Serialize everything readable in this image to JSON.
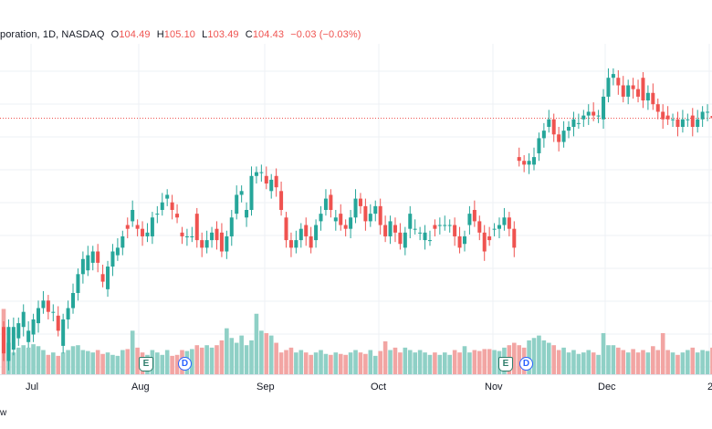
{
  "header": {
    "symbol": "poration, 1D, NASDAQ",
    "open_label": "O",
    "open": "104.49",
    "high_label": "H",
    "high": "105.10",
    "low_label": "L",
    "low": "103.49",
    "close_label": "C",
    "close": "104.43",
    "change": "−0.03 (−0.03%)"
  },
  "footer": {
    "text": "w"
  },
  "colors": {
    "up": "#26a69a",
    "down": "#ef5350",
    "vol_up": "#8fd0c6",
    "vol_down": "#f2a5a3",
    "grid": "#eef0f4",
    "earnings": "#2e7d6b",
    "dividend": "#2962ff"
  },
  "chart_data": {
    "type": "candlestick",
    "grid": true,
    "price_line_value": "104.43",
    "x_tick_labels": [
      "Jul",
      "Aug",
      "Sep",
      "Oct",
      "Nov",
      "Dec",
      "2"
    ],
    "events": [
      {
        "type": "earnings",
        "icon": "E"
      },
      {
        "type": "dividend",
        "icon": "D"
      },
      {
        "type": "earnings",
        "icon": "E"
      },
      {
        "type": "dividend",
        "icon": "D"
      }
    ],
    "candles": [
      {
        "o": 98.9,
        "c": 98.2,
        "v": 1.35
      },
      {
        "o": 98.0,
        "c": 98.9,
        "v": 0.65
      },
      {
        "o": 98.3,
        "c": 98.9,
        "v": 0.45
      },
      {
        "o": 98.6,
        "c": 99.0,
        "v": 0.55
      },
      {
        "o": 98.9,
        "c": 99.3,
        "v": 0.6
      },
      {
        "o": 98.5,
        "c": 98.8,
        "v": 0.55
      },
      {
        "o": 98.7,
        "c": 99.1,
        "v": 0.62
      },
      {
        "o": 99.0,
        "c": 99.4,
        "v": 0.58
      },
      {
        "o": 99.4,
        "c": 99.6,
        "v": 0.5
      },
      {
        "o": 99.6,
        "c": 99.3,
        "v": 0.4
      },
      {
        "o": 99.3,
        "c": 99.3,
        "v": 0.45
      },
      {
        "o": 99.2,
        "c": 98.8,
        "v": 0.38
      },
      {
        "o": 98.4,
        "c": 99.1,
        "v": 0.45
      },
      {
        "o": 99.1,
        "c": 99.4,
        "v": 0.5
      },
      {
        "o": 99.4,
        "c": 99.8,
        "v": 0.58
      },
      {
        "o": 99.8,
        "c": 100.3,
        "v": 0.6
      },
      {
        "o": 100.3,
        "c": 100.7,
        "v": 0.5
      },
      {
        "o": 100.4,
        "c": 100.8,
        "v": 0.48
      },
      {
        "o": 100.6,
        "c": 100.9,
        "v": 0.45
      },
      {
        "o": 100.9,
        "c": 100.6,
        "v": 0.5
      },
      {
        "o": 100.3,
        "c": 100.1,
        "v": 0.42
      },
      {
        "o": 99.9,
        "c": 100.5,
        "v": 0.45
      },
      {
        "o": 100.5,
        "c": 100.9,
        "v": 0.4
      },
      {
        "o": 100.8,
        "c": 101.0,
        "v": 0.38
      },
      {
        "o": 101.0,
        "c": 101.3,
        "v": 0.5
      },
      {
        "o": 101.6,
        "c": 101.5,
        "v": 0.52
      },
      {
        "o": 101.7,
        "c": 102.0,
        "v": 0.9
      },
      {
        "o": 101.6,
        "c": 101.5,
        "v": 0.55
      },
      {
        "o": 101.5,
        "c": 101.3,
        "v": 0.45
      },
      {
        "o": 101.3,
        "c": 101.4,
        "v": 0.4
      },
      {
        "o": 101.3,
        "c": 101.8,
        "v": 0.5
      },
      {
        "o": 101.9,
        "c": 101.9,
        "v": 0.45
      },
      {
        "o": 102.0,
        "c": 102.2,
        "v": 0.4
      },
      {
        "o": 102.3,
        "c": 102.4,
        "v": 0.5
      },
      {
        "o": 102.2,
        "c": 102.0,
        "v": 0.38
      },
      {
        "o": 101.9,
        "c": 101.8,
        "v": 0.4
      },
      {
        "o": 101.4,
        "c": 101.3,
        "v": 0.5
      },
      {
        "o": 101.3,
        "c": 101.3,
        "v": 0.48
      },
      {
        "o": 101.3,
        "c": 101.3,
        "v": 0.52
      },
      {
        "o": 101.9,
        "c": 101.2,
        "v": 0.6
      },
      {
        "o": 101.2,
        "c": 101.0,
        "v": 0.55
      },
      {
        "o": 101.0,
        "c": 101.2,
        "v": 0.6
      },
      {
        "o": 101.2,
        "c": 101.4,
        "v": 0.55
      },
      {
        "o": 101.5,
        "c": 101.2,
        "v": 0.6
      },
      {
        "o": 101.4,
        "c": 100.9,
        "v": 0.7
      },
      {
        "o": 100.9,
        "c": 101.3,
        "v": 0.95
      },
      {
        "o": 101.3,
        "c": 101.8,
        "v": 0.75
      },
      {
        "o": 101.9,
        "c": 102.4,
        "v": 0.65
      },
      {
        "o": 102.4,
        "c": 102.5,
        "v": 0.8
      },
      {
        "o": 101.8,
        "c": 102.0,
        "v": 0.6
      },
      {
        "o": 102.0,
        "c": 102.9,
        "v": 0.7
      },
      {
        "o": 102.9,
        "c": 103.0,
        "v": 1.25
      },
      {
        "o": 103.0,
        "c": 103.0,
        "v": 0.9
      },
      {
        "o": 102.9,
        "c": 102.7,
        "v": 0.85
      },
      {
        "o": 102.5,
        "c": 102.8,
        "v": 0.8
      },
      {
        "o": 102.9,
        "c": 102.6,
        "v": 0.65
      },
      {
        "o": 102.5,
        "c": 102.0,
        "v": 0.45
      },
      {
        "o": 101.8,
        "c": 101.2,
        "v": 0.5
      },
      {
        "o": 101.2,
        "c": 101.0,
        "v": 0.55
      },
      {
        "o": 101.0,
        "c": 101.2,
        "v": 0.45
      },
      {
        "o": 101.2,
        "c": 101.5,
        "v": 0.5
      },
      {
        "o": 101.6,
        "c": 101.3,
        "v": 0.45
      },
      {
        "o": 101.3,
        "c": 101.0,
        "v": 0.4
      },
      {
        "o": 101.2,
        "c": 101.6,
        "v": 0.45
      },
      {
        "o": 101.7,
        "c": 101.9,
        "v": 0.5
      },
      {
        "o": 102.0,
        "c": 102.3,
        "v": 0.42
      },
      {
        "o": 102.4,
        "c": 102.0,
        "v": 0.4
      },
      {
        "o": 101.7,
        "c": 101.8,
        "v": 0.45
      },
      {
        "o": 101.9,
        "c": 101.6,
        "v": 0.42
      },
      {
        "o": 101.6,
        "c": 101.5,
        "v": 0.4
      },
      {
        "o": 101.5,
        "c": 101.8,
        "v": 0.45
      },
      {
        "o": 101.8,
        "c": 102.3,
        "v": 0.5
      },
      {
        "o": 102.3,
        "c": 102.1,
        "v": 0.45
      },
      {
        "o": 102.1,
        "c": 101.7,
        "v": 0.42
      },
      {
        "o": 101.7,
        "c": 101.9,
        "v": 0.5
      },
      {
        "o": 101.9,
        "c": 102.1,
        "v": 0.38
      },
      {
        "o": 102.1,
        "c": 101.6,
        "v": 0.48
      },
      {
        "o": 101.6,
        "c": 101.3,
        "v": 0.68
      },
      {
        "o": 101.3,
        "c": 101.7,
        "v": 0.5
      },
      {
        "o": 101.6,
        "c": 101.4,
        "v": 0.55
      },
      {
        "o": 101.4,
        "c": 101.1,
        "v": 0.45
      },
      {
        "o": 101.0,
        "c": 101.4,
        "v": 0.55
      },
      {
        "o": 101.5,
        "c": 101.9,
        "v": 0.5
      },
      {
        "o": 101.5,
        "c": 101.5,
        "v": 0.45
      },
      {
        "o": 101.4,
        "c": 101.4,
        "v": 0.5
      },
      {
        "o": 101.2,
        "c": 101.4,
        "v": 0.45
      },
      {
        "o": 101.2,
        "c": 101.2,
        "v": 0.4
      },
      {
        "o": 101.6,
        "c": 101.5,
        "v": 0.45
      },
      {
        "o": 101.6,
        "c": 101.6,
        "v": 0.4
      },
      {
        "o": 101.6,
        "c": 101.6,
        "v": 0.45
      },
      {
        "o": 101.6,
        "c": 101.6,
        "v": 0.4
      },
      {
        "o": 101.6,
        "c": 101.3,
        "v": 0.5
      },
      {
        "o": 101.3,
        "c": 101.0,
        "v": 0.45
      },
      {
        "o": 101.1,
        "c": 101.3,
        "v": 0.58
      },
      {
        "o": 101.6,
        "c": 101.9,
        "v": 0.45
      },
      {
        "o": 102.0,
        "c": 101.7,
        "v": 0.5
      },
      {
        "o": 101.7,
        "c": 101.4,
        "v": 0.48
      },
      {
        "o": 101.4,
        "c": 100.9,
        "v": 0.52
      },
      {
        "o": 101.3,
        "c": 101.2,
        "v": 0.52
      },
      {
        "o": 101.5,
        "c": 101.5,
        "v": 0.5
      },
      {
        "o": 101.5,
        "c": 101.6,
        "v": 0.48
      },
      {
        "o": 101.6,
        "c": 101.8,
        "v": 0.55
      },
      {
        "o": 101.8,
        "c": 101.5,
        "v": 0.6
      },
      {
        "o": 101.5,
        "c": 101.0,
        "v": 0.65
      },
      {
        "o": 103.4,
        "c": 103.3,
        "v": 0.6
      },
      {
        "o": 103.3,
        "c": 103.2,
        "v": 0.55
      },
      {
        "o": 103.2,
        "c": 103.3,
        "v": 0.7
      },
      {
        "o": 103.2,
        "c": 103.4,
        "v": 0.75
      },
      {
        "o": 103.5,
        "c": 103.9,
        "v": 0.8
      },
      {
        "o": 103.9,
        "c": 104.1,
        "v": 0.7
      },
      {
        "o": 104.2,
        "c": 104.4,
        "v": 0.65
      },
      {
        "o": 104.4,
        "c": 104.0,
        "v": 0.6
      },
      {
        "o": 104.0,
        "c": 103.8,
        "v": 0.5
      },
      {
        "o": 103.8,
        "c": 104.1,
        "v": 0.55
      },
      {
        "o": 104.1,
        "c": 104.2,
        "v": 0.45
      },
      {
        "o": 104.2,
        "c": 104.4,
        "v": 0.5
      },
      {
        "o": 104.3,
        "c": 104.3,
        "v": 0.42
      },
      {
        "o": 104.4,
        "c": 104.5,
        "v": 0.45
      },
      {
        "o": 104.5,
        "c": 104.6,
        "v": 0.5
      },
      {
        "o": 104.6,
        "c": 104.5,
        "v": 0.45
      },
      {
        "o": 104.5,
        "c": 104.5,
        "v": 0.4
      },
      {
        "o": 104.4,
        "c": 105.0,
        "v": 0.85
      },
      {
        "o": 105.0,
        "c": 105.5,
        "v": 0.6
      },
      {
        "o": 105.5,
        "c": 105.6,
        "v": 0.6
      },
      {
        "o": 105.5,
        "c": 105.3,
        "v": 0.55
      },
      {
        "o": 105.3,
        "c": 105.0,
        "v": 0.5
      },
      {
        "o": 105.0,
        "c": 105.3,
        "v": 0.45
      },
      {
        "o": 105.3,
        "c": 105.2,
        "v": 0.52
      },
      {
        "o": 105.2,
        "c": 105.0,
        "v": 0.45
      },
      {
        "o": 105.5,
        "c": 104.9,
        "v": 0.5
      },
      {
        "o": 104.9,
        "c": 105.1,
        "v": 0.45
      },
      {
        "o": 105.1,
        "c": 104.8,
        "v": 0.58
      },
      {
        "o": 104.8,
        "c": 104.6,
        "v": 0.5
      },
      {
        "o": 104.6,
        "c": 104.4,
        "v": 0.85
      },
      {
        "o": 104.5,
        "c": 104.4,
        "v": 0.5
      },
      {
        "o": 104.4,
        "c": 104.4,
        "v": 0.45
      },
      {
        "o": 104.4,
        "c": 104.2,
        "v": 0.4
      },
      {
        "o": 104.2,
        "c": 104.4,
        "v": 0.45
      },
      {
        "o": 104.4,
        "c": 104.4,
        "v": 0.5
      },
      {
        "o": 104.5,
        "c": 104.2,
        "v": 0.55
      },
      {
        "o": 104.2,
        "c": 104.4,
        "v": 0.45
      },
      {
        "o": 104.4,
        "c": 104.6,
        "v": 0.5
      },
      {
        "o": 104.6,
        "c": 104.6,
        "v": 0.48
      },
      {
        "o": 104.49,
        "c": 104.43,
        "v": 0.55
      }
    ]
  }
}
